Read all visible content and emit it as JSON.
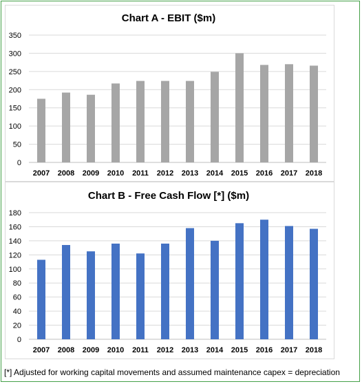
{
  "chart_data": [
    {
      "type": "bar",
      "title": "Chart A - EBIT ($m)",
      "categories": [
        "2007",
        "2008",
        "2009",
        "2010",
        "2011",
        "2012",
        "2013",
        "2014",
        "2015",
        "2016",
        "2017",
        "2018"
      ],
      "values": [
        175,
        192,
        186,
        217,
        224,
        224,
        224,
        249,
        300,
        268,
        270,
        266
      ],
      "ylim": [
        0,
        350
      ],
      "yticks": [
        0,
        50,
        100,
        150,
        200,
        250,
        300,
        350
      ],
      "grid": true,
      "color": "#a6a6a6"
    },
    {
      "type": "bar",
      "title": "Chart B  - Free Cash Flow [*] ($m)",
      "categories": [
        "2007",
        "2008",
        "2009",
        "2010",
        "2011",
        "2012",
        "2013",
        "2014",
        "2015",
        "2016",
        "2017",
        "2018"
      ],
      "values": [
        113,
        134,
        125,
        136,
        122,
        136,
        158,
        140,
        165,
        170,
        161,
        157
      ],
      "ylim": [
        0,
        180
      ],
      "yticks": [
        0,
        20,
        40,
        60,
        80,
        100,
        120,
        140,
        160,
        180
      ],
      "grid": true,
      "color": "#4472c4"
    }
  ],
  "footnote": "[*]  Adjusted for working capital movements and assumed maintenance capex = depreciation"
}
